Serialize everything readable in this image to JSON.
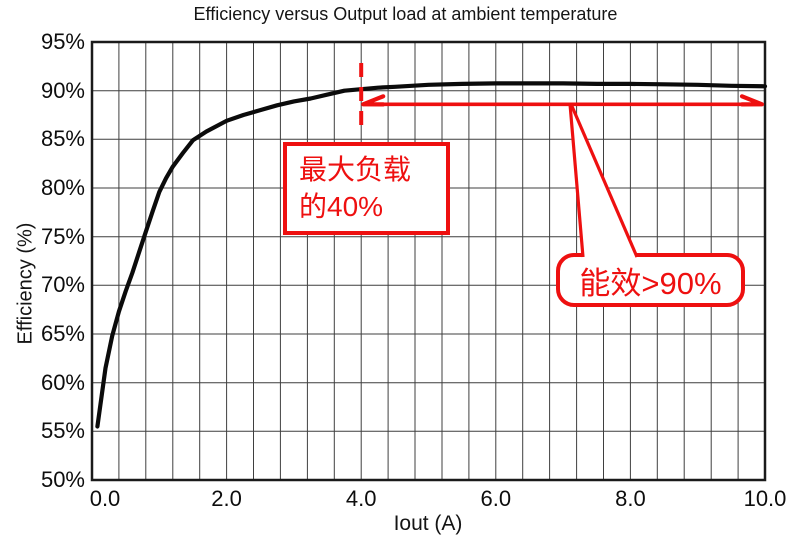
{
  "title": "Efficiency versus Output load at ambient temperature",
  "axes": {
    "x_label": "Iout (A)",
    "y_label": "Efficiency (%)",
    "x_tick_labels": [
      "0.0",
      "2.0",
      "4.0",
      "6.0",
      "8.0",
      "10.0"
    ],
    "x_tick_values": [
      0,
      2,
      4,
      6,
      8,
      10
    ],
    "y_tick_labels": [
      "95%",
      "90%",
      "85%",
      "80%",
      "75%",
      "70%",
      "65%",
      "60%",
      "55%",
      "50%"
    ],
    "y_tick_values": [
      95,
      90,
      85,
      80,
      75,
      70,
      65,
      60,
      55,
      50
    ]
  },
  "chart_data": {
    "type": "line",
    "title": "Efficiency versus Output load at ambient temperature",
    "xlabel": "Iout (A)",
    "ylabel": "Efficiency (%)",
    "xlim": [
      0,
      10
    ],
    "ylim": [
      50,
      95
    ],
    "x_major_step": 2.0,
    "x_minor_step": 0.4,
    "y_step": 5,
    "grid": true,
    "grid_color": "#3f3f3f",
    "series": [
      {
        "name": "Efficiency",
        "color": "#0b0b0b",
        "points": [
          [
            0.08,
            55.5
          ],
          [
            0.12,
            57.5
          ],
          [
            0.2,
            61.5
          ],
          [
            0.3,
            64.8
          ],
          [
            0.4,
            67.3
          ],
          [
            0.5,
            69.4
          ],
          [
            0.6,
            71.3
          ],
          [
            0.7,
            73.4
          ],
          [
            0.8,
            75.5
          ],
          [
            0.9,
            77.6
          ],
          [
            1.0,
            79.6
          ],
          [
            1.1,
            81.0
          ],
          [
            1.2,
            82.2
          ],
          [
            1.35,
            83.6
          ],
          [
            1.5,
            84.9
          ],
          [
            1.7,
            85.8
          ],
          [
            2.0,
            86.9
          ],
          [
            2.25,
            87.5
          ],
          [
            2.5,
            88.0
          ],
          [
            2.75,
            88.5
          ],
          [
            3.0,
            88.9
          ],
          [
            3.25,
            89.2
          ],
          [
            3.5,
            89.6
          ],
          [
            3.75,
            90.0
          ],
          [
            4.0,
            90.15
          ],
          [
            4.25,
            90.3
          ],
          [
            4.5,
            90.4
          ],
          [
            5.0,
            90.6
          ],
          [
            5.5,
            90.7
          ],
          [
            6.0,
            90.75
          ],
          [
            6.5,
            90.75
          ],
          [
            7.0,
            90.75
          ],
          [
            7.5,
            90.7
          ],
          [
            8.0,
            90.7
          ],
          [
            8.5,
            90.65
          ],
          [
            9.0,
            90.6
          ],
          [
            9.5,
            90.5
          ],
          [
            10.0,
            90.45
          ]
        ]
      }
    ]
  },
  "annotations": {
    "accent_color": "#ee1010",
    "load_label_line1": "最大负载",
    "load_label_line2": "的40%",
    "efficiency_label": "能效>90%",
    "dashed_line_x": 4.0,
    "arrow": {
      "from_x": 4.0,
      "to_x": 10.0,
      "at_efficiency": 88.6
    }
  }
}
